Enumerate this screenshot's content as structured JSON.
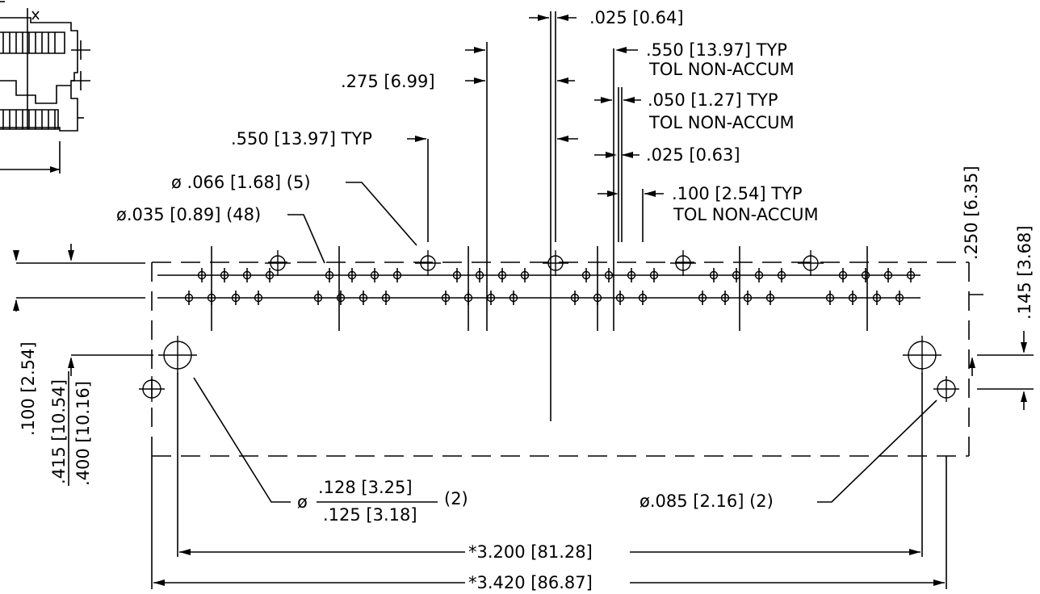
{
  "dimensions": {
    "d_025_064": ".025 [0.64]",
    "d_550_typ_top": ".550 [13.97] TYP",
    "tol_non_accum_1": "TOL NON-ACCUM",
    "d_275": ".275 [6.99]",
    "d_050_typ": ".050 [1.27] TYP",
    "tol_non_accum_2": "TOL NON-ACCUM",
    "d_550_typ_left": ".550 [13.97] TYP",
    "d_025_063": ".025 [0.63]",
    "dia_066": "ø .066 [1.68] (5)",
    "d_100_typ": ".100 [2.54] TYP",
    "tol_non_accum_3": "TOL NON-ACCUM",
    "dia_035": "ø.035 [0.89] (48)",
    "d_250": ".250 [6.35]",
    "d_145": ".145 [3.68]",
    "d_100_254": ".100 [2.54]",
    "d_415": ".415 [10.54]",
    "d_400": ".400 [10.16]",
    "dia_symbol": "ø",
    "d_128": ".128 [3.25]",
    "d_125": ".125 [3.18]",
    "qty_2": "(2)",
    "dia_085": "ø.085 [2.16] (2)",
    "d_3200": "*3.200 [81.28]",
    "d_3420": "*3.420 [86.87]"
  }
}
